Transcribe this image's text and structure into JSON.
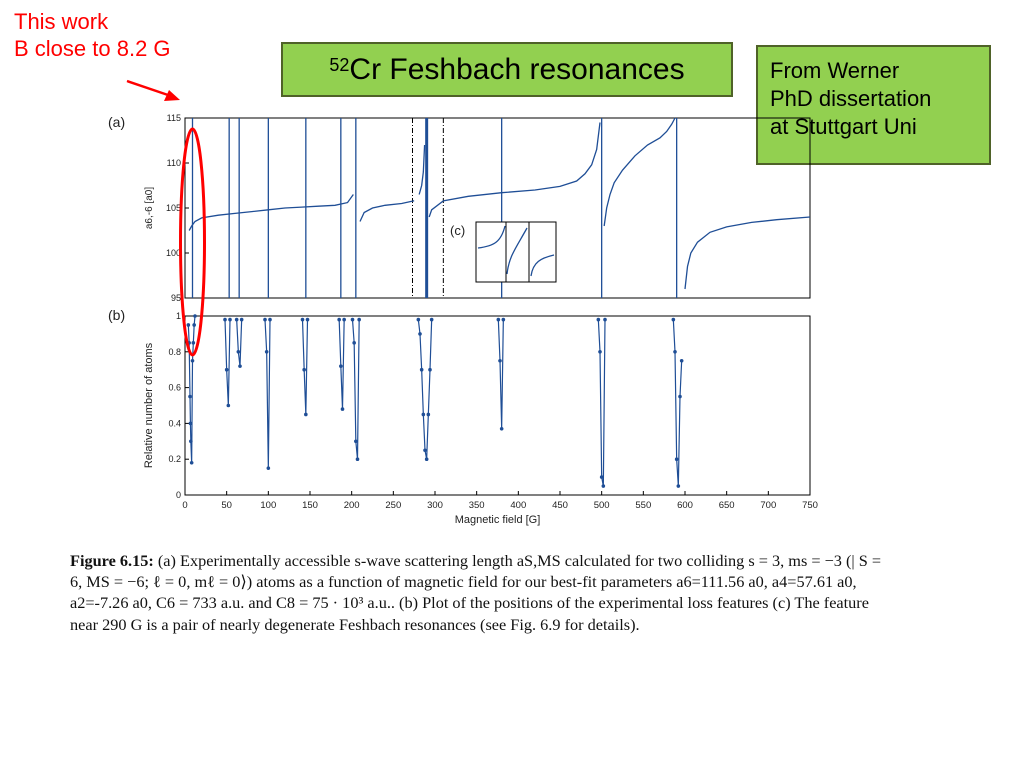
{
  "slide": {
    "note_line1": "This work",
    "note_line2": "B close to 8.2 G",
    "title_sup": "52",
    "title_main": "Cr Feshbach resonances",
    "source_line1": "From Werner",
    "source_line2": "PhD dissertation",
    "source_line3": "at Stuttgart Uni",
    "colors": {
      "accent_box": "#92d050",
      "note": "#ff0000",
      "plot": "#1f4e96"
    }
  },
  "caption": {
    "lead": "Figure 6.15:",
    "text": "(a) Experimentally accessible s-wave scattering length aS,MS calculated for two colliding s = 3, ms = −3 (| S = 6, MS = −6; ℓ = 0, mℓ = 0⟩) atoms as a function of magnetic field for our best-fit parameters a6=111.56 a0, a4=57.61 a0, a2=-7.26 a0, C6 = 733 a.u. and C8 = 75 · 10³ a.u.. (b) Plot of the positions of the experimental loss features (c) The feature near 290 G is a pair of nearly degenerate Feshbach resonances (see Fig. 6.9 for details)."
  },
  "chart_data": [
    {
      "panel": "(a)",
      "type": "line",
      "ylabel": "a6,-6 [a0]",
      "xlim": [
        0,
        750
      ],
      "ylim": [
        95,
        115
      ],
      "yticks": [
        95,
        100,
        105,
        110,
        115
      ],
      "resonance_lines": [
        9,
        53,
        65,
        100,
        145,
        187,
        205,
        290,
        380,
        500,
        590
      ],
      "dashdot_lines": [
        273,
        310
      ],
      "series": [
        {
          "x": [
            5,
            8,
            12,
            20,
            40,
            60,
            80,
            100,
            120,
            140,
            160,
            180,
            195,
            202
          ],
          "values": [
            102.5,
            103.0,
            103.5,
            103.9,
            104.2,
            104.4,
            104.6,
            104.8,
            105.0,
            105.1,
            105.2,
            105.3,
            105.6,
            106.5
          ]
        },
        {
          "x": [
            210,
            215,
            225,
            240,
            260,
            275
          ],
          "values": [
            103.5,
            104.5,
            105.0,
            105.3,
            105.5,
            105.8
          ]
        },
        {
          "x": [
            281,
            284,
            286,
            287.5
          ],
          "values": [
            106.5,
            107.5,
            109.0,
            112.0
          ]
        },
        {
          "x": [
            293,
            296,
            310,
            340,
            380,
            420,
            450,
            470,
            480,
            488,
            494,
            498
          ],
          "values": [
            104.0,
            104.8,
            105.8,
            106.3,
            106.7,
            107.0,
            107.4,
            108.0,
            108.8,
            109.8,
            111.5,
            114.5
          ]
        },
        {
          "x": [
            503,
            506,
            510,
            515,
            525,
            540,
            555,
            570,
            578,
            584,
            588
          ],
          "values": [
            103.0,
            105.0,
            106.5,
            107.8,
            109.2,
            110.8,
            112.0,
            112.8,
            113.5,
            114.3,
            115.0
          ]
        },
        {
          "x": [
            600,
            603,
            607,
            615,
            630,
            650,
            680,
            710,
            750
          ],
          "values": [
            96.0,
            98.5,
            100.0,
            101.2,
            102.3,
            102.9,
            103.4,
            103.7,
            104.0
          ]
        }
      ]
    },
    {
      "panel": "(b)",
      "type": "line",
      "xlabel": "Magnetic field [G]",
      "ylabel": "Relative number of atoms",
      "xlim": [
        0,
        750
      ],
      "ylim": [
        0,
        1
      ],
      "xticks": [
        0,
        50,
        100,
        150,
        200,
        250,
        300,
        350,
        400,
        450,
        500,
        550,
        600,
        650,
        700,
        750
      ],
      "yticks": [
        0,
        0.2,
        0.4,
        0.6,
        0.8,
        1
      ],
      "features": [
        {
          "x": [
            4,
            5,
            6,
            6.5,
            7,
            8,
            9,
            10,
            11,
            12
          ],
          "values": [
            0.95,
            0.85,
            0.55,
            0.4,
            0.3,
            0.18,
            0.75,
            0.85,
            0.95,
            1.0
          ]
        },
        {
          "x": [
            48,
            50,
            52,
            54
          ],
          "values": [
            0.98,
            0.7,
            0.5,
            0.98
          ]
        },
        {
          "x": [
            62,
            64,
            66,
            68
          ],
          "values": [
            0.98,
            0.8,
            0.72,
            0.98
          ]
        },
        {
          "x": [
            96,
            98,
            100,
            102
          ],
          "values": [
            0.98,
            0.8,
            0.15,
            0.98
          ]
        },
        {
          "x": [
            141,
            143,
            145,
            147
          ],
          "values": [
            0.98,
            0.7,
            0.45,
            0.98
          ]
        },
        {
          "x": [
            185,
            187,
            189,
            191
          ],
          "values": [
            0.98,
            0.72,
            0.48,
            0.98
          ]
        },
        {
          "x": [
            201,
            203,
            205,
            207,
            209
          ],
          "values": [
            0.98,
            0.85,
            0.3,
            0.2,
            0.98
          ]
        },
        {
          "x": [
            280,
            282,
            284,
            286,
            288,
            290,
            292,
            294,
            296
          ],
          "values": [
            0.98,
            0.9,
            0.7,
            0.45,
            0.25,
            0.2,
            0.45,
            0.7,
            0.98
          ]
        },
        {
          "x": [
            376,
            378,
            380,
            382
          ],
          "values": [
            0.98,
            0.75,
            0.37,
            0.98
          ]
        },
        {
          "x": [
            496,
            498,
            500,
            502,
            504
          ],
          "values": [
            0.98,
            0.8,
            0.1,
            0.05,
            0.98
          ]
        },
        {
          "x": [
            586,
            588,
            590,
            592,
            594,
            596
          ],
          "values": [
            0.98,
            0.8,
            0.2,
            0.05,
            0.55,
            0.75
          ]
        }
      ]
    }
  ],
  "inset": {
    "label": "(c)"
  }
}
